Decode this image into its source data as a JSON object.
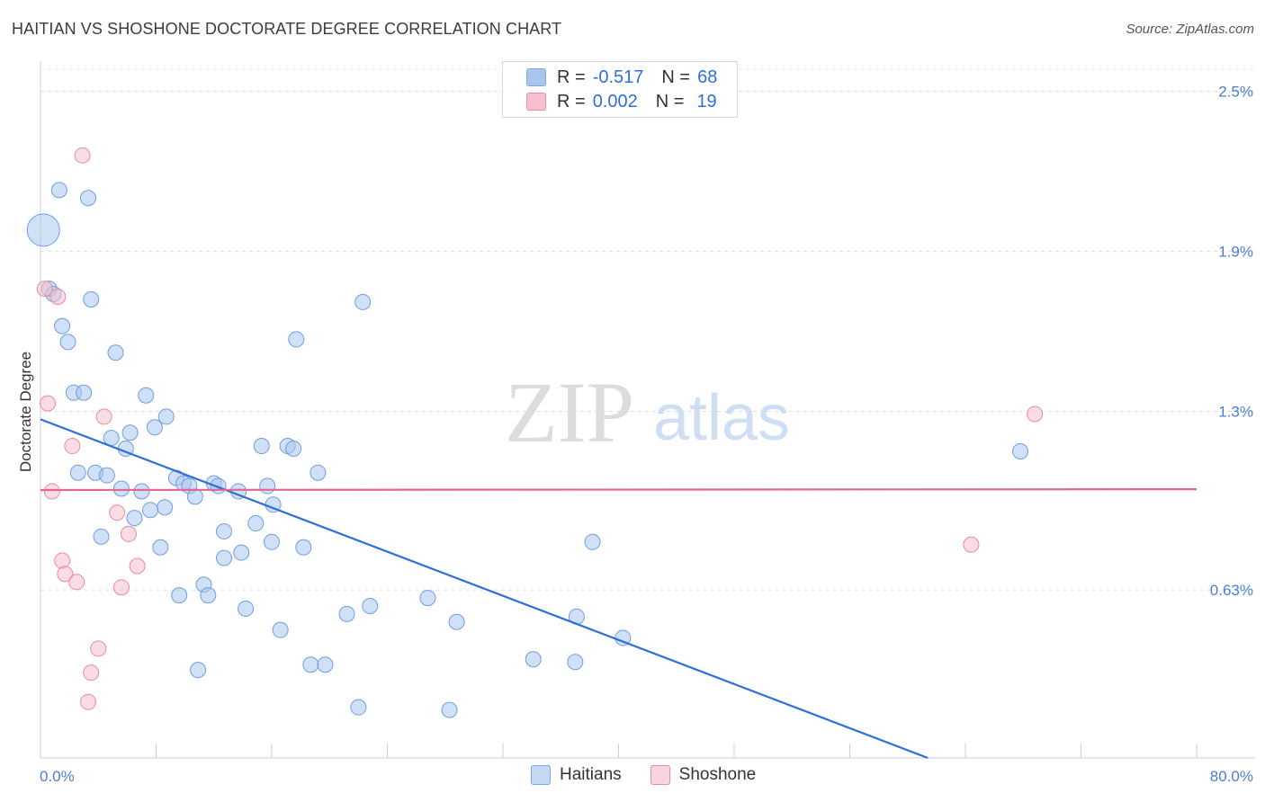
{
  "title": "HAITIAN VS SHOSHONE DOCTORATE DEGREE CORRELATION CHART",
  "source": "Source: ZipAtlas.com",
  "watermark": {
    "zip": "ZIP",
    "atlas": "atlas"
  },
  "legend": {
    "rows": [
      {
        "r_label": "R =",
        "r_value": "-0.517",
        "n_label": "N =",
        "n_value": "68",
        "color": "#a9c6ee",
        "border": "#7ea7e0"
      },
      {
        "r_label": "R =",
        "r_value": "0.002",
        "n_label": "N =",
        "n_value": "19",
        "color": "#f6bfce",
        "border": "#e98aa6"
      }
    ]
  },
  "bottom_legend": [
    {
      "label": "Haitians",
      "color": "#c5d8f3",
      "border": "#7ea7e0"
    },
    {
      "label": "Shoshone",
      "color": "#f9d3de",
      "border": "#e98aa6"
    }
  ],
  "chart_data": {
    "type": "scatter",
    "title": "HAITIAN VS SHOSHONE DOCTORATE DEGREE CORRELATION CHART",
    "xlabel": "",
    "ylabel": "Doctorate Degree",
    "xlim": [
      0,
      80
    ],
    "ylim": [
      0,
      2.6
    ],
    "x_tick_labels": [
      "0.0%",
      "80.0%"
    ],
    "y_ticks": [
      {
        "value": 0.63,
        "label": "0.63%"
      },
      {
        "value": 1.3,
        "label": "1.3%"
      },
      {
        "value": 1.9,
        "label": "1.9%"
      },
      {
        "value": 2.5,
        "label": "2.5%"
      }
    ],
    "series": [
      {
        "name": "Haitians",
        "color": "#a9c6ee",
        "stroke": "#6f9ee0",
        "trend": {
          "x": [
            0,
            61.4
          ],
          "y": [
            1.27,
            0.0
          ]
        },
        "points": [
          {
            "x": 0.2,
            "y": 1.98,
            "big": true
          },
          {
            "x": 1.3,
            "y": 2.13
          },
          {
            "x": 3.3,
            "y": 2.1
          },
          {
            "x": 0.6,
            "y": 1.76
          },
          {
            "x": 0.9,
            "y": 1.74
          },
          {
            "x": 3.5,
            "y": 1.72
          },
          {
            "x": 1.5,
            "y": 1.62
          },
          {
            "x": 1.9,
            "y": 1.56
          },
          {
            "x": 22.3,
            "y": 1.71
          },
          {
            "x": 17.7,
            "y": 1.57
          },
          {
            "x": 5.2,
            "y": 1.52
          },
          {
            "x": 2.3,
            "y": 1.37
          },
          {
            "x": 3.0,
            "y": 1.37
          },
          {
            "x": 7.3,
            "y": 1.36
          },
          {
            "x": 8.7,
            "y": 1.28
          },
          {
            "x": 7.9,
            "y": 1.24
          },
          {
            "x": 6.2,
            "y": 1.22
          },
          {
            "x": 4.9,
            "y": 1.2
          },
          {
            "x": 5.9,
            "y": 1.16
          },
          {
            "x": 15.3,
            "y": 1.17
          },
          {
            "x": 17.1,
            "y": 1.17
          },
          {
            "x": 17.5,
            "y": 1.16
          },
          {
            "x": 2.6,
            "y": 1.07
          },
          {
            "x": 3.8,
            "y": 1.07
          },
          {
            "x": 4.6,
            "y": 1.06
          },
          {
            "x": 19.2,
            "y": 1.07
          },
          {
            "x": 9.4,
            "y": 1.05
          },
          {
            "x": 9.9,
            "y": 1.03
          },
          {
            "x": 10.3,
            "y": 1.02
          },
          {
            "x": 12.0,
            "y": 1.03
          },
          {
            "x": 12.3,
            "y": 1.02
          },
          {
            "x": 15.7,
            "y": 1.02
          },
          {
            "x": 5.6,
            "y": 1.01
          },
          {
            "x": 7.0,
            "y": 1.0
          },
          {
            "x": 13.7,
            "y": 1.0
          },
          {
            "x": 10.7,
            "y": 0.98
          },
          {
            "x": 16.1,
            "y": 0.95
          },
          {
            "x": 8.6,
            "y": 0.94
          },
          {
            "x": 7.6,
            "y": 0.93
          },
          {
            "x": 6.5,
            "y": 0.9
          },
          {
            "x": 14.9,
            "y": 0.88
          },
          {
            "x": 12.7,
            "y": 0.85
          },
          {
            "x": 4.2,
            "y": 0.83
          },
          {
            "x": 8.3,
            "y": 0.79
          },
          {
            "x": 16.0,
            "y": 0.81
          },
          {
            "x": 18.2,
            "y": 0.79
          },
          {
            "x": 13.9,
            "y": 0.77
          },
          {
            "x": 12.7,
            "y": 0.75
          },
          {
            "x": 38.2,
            "y": 0.81
          },
          {
            "x": 11.3,
            "y": 0.65
          },
          {
            "x": 9.6,
            "y": 0.61
          },
          {
            "x": 11.6,
            "y": 0.61
          },
          {
            "x": 26.8,
            "y": 0.6
          },
          {
            "x": 14.2,
            "y": 0.56
          },
          {
            "x": 22.8,
            "y": 0.57
          },
          {
            "x": 21.2,
            "y": 0.54
          },
          {
            "x": 37.1,
            "y": 0.53
          },
          {
            "x": 28.8,
            "y": 0.51
          },
          {
            "x": 16.6,
            "y": 0.48
          },
          {
            "x": 40.3,
            "y": 0.45
          },
          {
            "x": 34.1,
            "y": 0.37
          },
          {
            "x": 18.7,
            "y": 0.35
          },
          {
            "x": 19.7,
            "y": 0.35
          },
          {
            "x": 37.0,
            "y": 0.36
          },
          {
            "x": 10.9,
            "y": 0.33
          },
          {
            "x": 22.0,
            "y": 0.19
          },
          {
            "x": 28.3,
            "y": 0.18
          },
          {
            "x": 67.8,
            "y": 1.15
          }
        ]
      },
      {
        "name": "Shoshone",
        "color": "#f6bfce",
        "stroke": "#e98aa6",
        "trend": {
          "x": [
            0,
            80
          ],
          "y": [
            1.005,
            1.008
          ]
        },
        "points": [
          {
            "x": 2.9,
            "y": 2.26
          },
          {
            "x": 0.3,
            "y": 1.76
          },
          {
            "x": 1.2,
            "y": 1.73
          },
          {
            "x": 0.5,
            "y": 1.33
          },
          {
            "x": 4.4,
            "y": 1.28
          },
          {
            "x": 2.2,
            "y": 1.17
          },
          {
            "x": 0.8,
            "y": 1.0
          },
          {
            "x": 5.3,
            "y": 0.92
          },
          {
            "x": 6.1,
            "y": 0.84
          },
          {
            "x": 1.5,
            "y": 0.74
          },
          {
            "x": 6.7,
            "y": 0.72
          },
          {
            "x": 1.7,
            "y": 0.69
          },
          {
            "x": 2.5,
            "y": 0.66
          },
          {
            "x": 5.6,
            "y": 0.64
          },
          {
            "x": 4.0,
            "y": 0.41
          },
          {
            "x": 3.5,
            "y": 0.32
          },
          {
            "x": 3.3,
            "y": 0.21
          },
          {
            "x": 68.8,
            "y": 1.29
          },
          {
            "x": 64.4,
            "y": 0.8
          }
        ]
      }
    ]
  }
}
